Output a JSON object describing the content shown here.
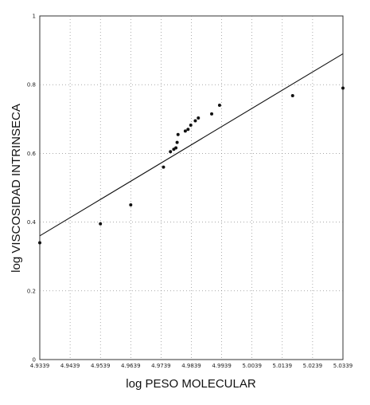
{
  "chart_data": {
    "type": "scatter",
    "title": "",
    "xlabel": "log PESO MOLECULAR",
    "ylabel": "log VISCOSIDAD INTRINSECA",
    "xlim": [
      4.9339,
      5.0339
    ],
    "ylim": [
      0,
      1
    ],
    "x_ticks": [
      4.9339,
      4.9439,
      4.9539,
      4.9639,
      4.9739,
      4.9839,
      4.9939,
      5.0039,
      5.0139,
      5.0239,
      5.0339
    ],
    "x_tick_labels": [
      "4.9339",
      "4.9439",
      "4.9539",
      "4.9639",
      "4.9739",
      "4.9839",
      "4.9939",
      "5.0039",
      "5.0139",
      "5.0239",
      "5.0339"
    ],
    "y_ticks": [
      0,
      0.2,
      0.4,
      0.6,
      0.8,
      1
    ],
    "y_tick_labels": [
      "0",
      "0.2",
      "0.4",
      "0.6",
      "0.8",
      "1"
    ],
    "grid": true,
    "points": [
      {
        "x": 4.9339,
        "y": 0.34
      },
      {
        "x": 4.9539,
        "y": 0.395
      },
      {
        "x": 4.9639,
        "y": 0.45
      },
      {
        "x": 4.9747,
        "y": 0.56
      },
      {
        "x": 4.977,
        "y": 0.605
      },
      {
        "x": 4.9781,
        "y": 0.612
      },
      {
        "x": 4.9788,
        "y": 0.616
      },
      {
        "x": 4.9792,
        "y": 0.632
      },
      {
        "x": 4.9795,
        "y": 0.655
      },
      {
        "x": 4.9819,
        "y": 0.665
      },
      {
        "x": 4.9828,
        "y": 0.67
      },
      {
        "x": 4.9837,
        "y": 0.682
      },
      {
        "x": 4.9852,
        "y": 0.695
      },
      {
        "x": 4.9862,
        "y": 0.703
      },
      {
        "x": 4.9906,
        "y": 0.715
      },
      {
        "x": 4.9932,
        "y": 0.74
      },
      {
        "x": 5.0173,
        "y": 0.768
      },
      {
        "x": 5.0339,
        "y": 0.79
      }
    ],
    "trend_line": {
      "x": [
        4.9339,
        5.0339
      ],
      "y": [
        0.36,
        0.89
      ]
    }
  }
}
